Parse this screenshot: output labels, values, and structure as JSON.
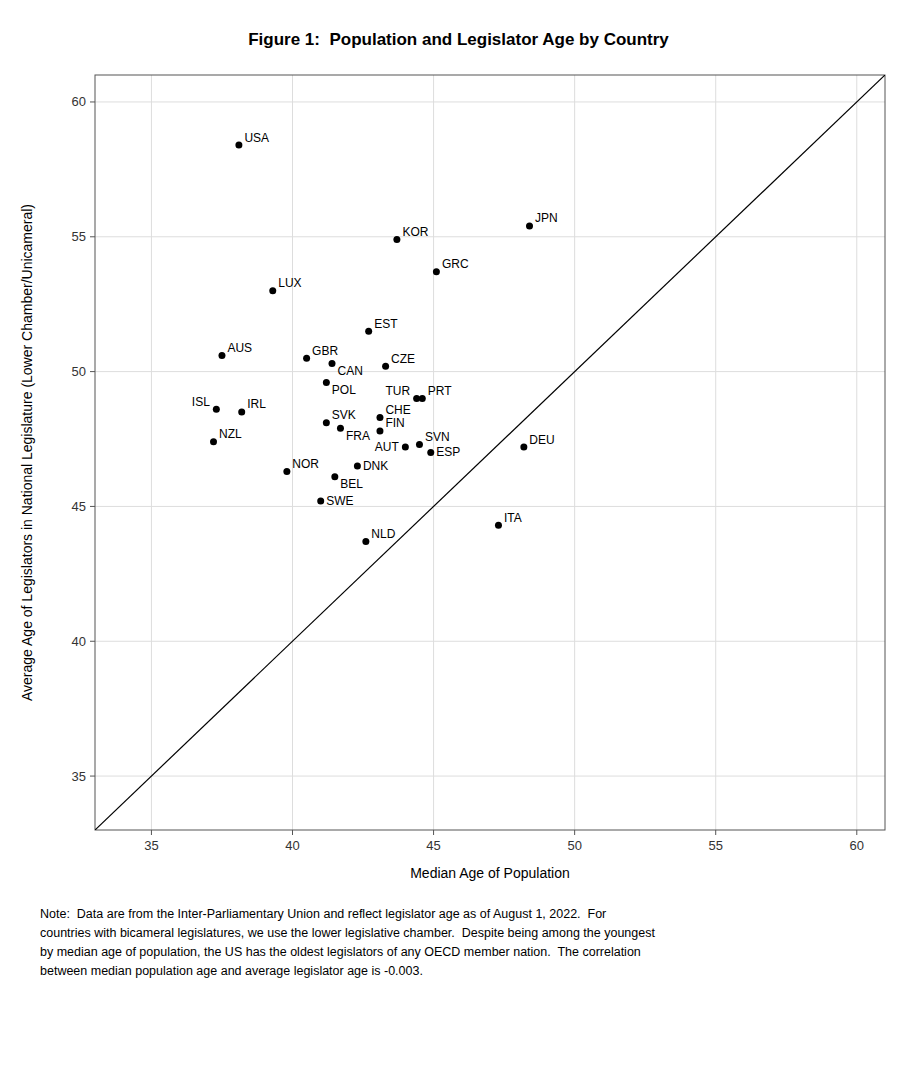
{
  "chart_data": {
    "type": "scatter",
    "title": "Figure 1:  Population and Legislator Age by Country",
    "x_label": "Median Age of Population",
    "y_label": "Average Age of Legislators in National Legislature (Lower Chamber/Unicameral)",
    "note": "Note:  Data are from the Inter-Parliamentary Union and reflect legislator age as of August 1, 2022.  For\ncountries with bicameral legislatures, we use the lower legislative chamber.  Despite being among the youngest\nby median age of population, the US has the oldest legislators of any OECD member nation.  The correlation\nbetween median population age and average legislator age is -0.003.",
    "categories": [
      "USA",
      "JPN",
      "KOR",
      "GRC",
      "LUX",
      "EST",
      "AUS",
      "GBR",
      "CAN",
      "CZE",
      "POL",
      "PRT",
      "TUR",
      "ISL",
      "IRL",
      "CHE",
      "SVK",
      "FRA",
      "FIN",
      "NZL",
      "SVN",
      "AUT",
      "DEU",
      "ESP",
      "DNK",
      "NOR",
      "BEL",
      "SWE",
      "ITA",
      "NLD"
    ],
    "x": [
      38.1,
      48.4,
      43.7,
      45.1,
      39.3,
      42.7,
      37.5,
      40.5,
      41.4,
      43.3,
      41.2,
      44.6,
      44.4,
      37.3,
      38.2,
      43.1,
      41.2,
      41.7,
      43.1,
      37.2,
      44.5,
      44.0,
      48.2,
      44.9,
      42.3,
      39.8,
      41.5,
      41.0,
      47.3,
      42.6
    ],
    "values": [
      58.4,
      55.4,
      54.9,
      53.7,
      53.0,
      51.5,
      50.6,
      50.5,
      50.3,
      50.2,
      49.6,
      49.0,
      49.0,
      48.6,
      48.5,
      48.3,
      48.1,
      47.9,
      47.8,
      47.4,
      47.3,
      47.2,
      47.2,
      47.0,
      46.5,
      46.3,
      46.1,
      45.2,
      44.3,
      43.7
    ],
    "color": "#000000",
    "xlim": [
      33,
      61
    ],
    "ylim": [
      33,
      61
    ],
    "xticks": [
      35,
      40,
      45,
      50,
      55,
      60
    ],
    "yticks": [
      35,
      40,
      45,
      50,
      55,
      60
    ],
    "grid": true
  }
}
